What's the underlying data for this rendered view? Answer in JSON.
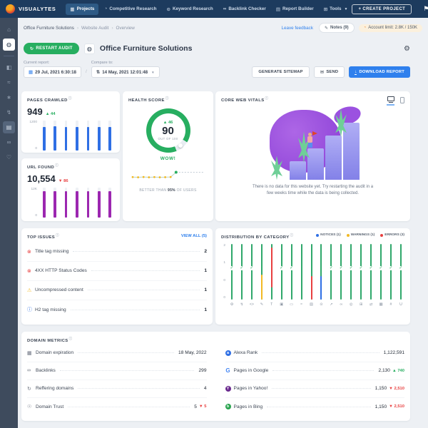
{
  "topnav": {
    "brand": "VISUALYTES",
    "items": [
      {
        "label": "Projects",
        "icon": "projects-icon",
        "glyph": "▦",
        "active": true
      },
      {
        "label": "Competitive Research",
        "icon": "competitive-research-icon",
        "glyph": "◔",
        "active": false
      },
      {
        "label": "Keyword Research",
        "icon": "keyword-research-icon",
        "glyph": "⊙",
        "active": false
      },
      {
        "label": "Backlink Checker",
        "icon": "backlink-checker-icon",
        "glyph": "∞",
        "active": false
      },
      {
        "label": "Report Builder",
        "icon": "report-builder-icon",
        "glyph": "▤",
        "active": false
      },
      {
        "label": "Tools",
        "icon": "tools-icon",
        "glyph": "⊞",
        "active": false,
        "caret": true
      }
    ],
    "create_project": "+ CREATE PROJECT",
    "avatar": "VL"
  },
  "sidebar": {
    "items": [
      {
        "name": "home-icon",
        "glyph": "⌂",
        "state": "normal"
      },
      {
        "name": "site-audit-icon",
        "glyph": "◍",
        "state": "active"
      },
      {
        "name": "divider",
        "glyph": "",
        "state": "divider"
      },
      {
        "name": "analytics-icon",
        "glyph": "◧",
        "state": "normal"
      },
      {
        "name": "pulse-icon",
        "glyph": "≈",
        "state": "normal"
      },
      {
        "name": "keywords-icon",
        "glyph": "∗",
        "state": "normal"
      },
      {
        "name": "lightning-icon",
        "glyph": "↯",
        "state": "normal"
      },
      {
        "name": "reports-icon",
        "glyph": "▤",
        "state": "highlight"
      },
      {
        "name": "backlinks-icon",
        "glyph": "∞",
        "state": "normal"
      },
      {
        "name": "thumbs-up-icon",
        "glyph": "♡",
        "state": "normal"
      }
    ]
  },
  "breadcrumb": {
    "items": [
      "Office Furniture Solutions",
      "Website Audit",
      "Overview"
    ]
  },
  "utility": {
    "leave_feedback": "Leave feedback",
    "notes": "Notes (9)",
    "account_limit": "Account limit: 2.8K / 150K"
  },
  "toolbar": {
    "restart": "RESTART AUDIT",
    "title": "Office Furniture Solutions"
  },
  "report_controls": {
    "current_label": "Current report:",
    "current_value": "29 Jul, 2021 6:30:18",
    "separator": "/",
    "compare_label": "Compare to:",
    "compare_value": "14 May, 2021 12:01:48",
    "generate_sitemap": "GENERATE SITEMAP",
    "send": "SEND",
    "download": "DOWNLOAD REPORT"
  },
  "cards": {
    "pages_crawled": {
      "title": "PAGES CRAWLED",
      "value": "949",
      "delta": "▲ 44",
      "delta_dir": "up"
    },
    "url_found": {
      "title": "URL FOUND",
      "value": "10,554",
      "delta": "▼ 86",
      "delta_dir": "down"
    },
    "health": {
      "title": "HEALTH SCORE",
      "delta": "▲ 46",
      "score": "90",
      "sub": "OUT OF 100",
      "badge": "WOW!",
      "caption_pre": "BETTER THAN ",
      "caption_strong": "95%",
      "caption_post": " OF USERS"
    },
    "cwv": {
      "title": "CORE WEB VITALS",
      "message_line1": "There is no data for this website yet. Try restarting the audit in a",
      "message_line2": "few weeks time while the data is being collected."
    },
    "top_issues": {
      "title": "TOP ISSUES",
      "view_all": "VIEW ALL (5)",
      "items": [
        {
          "severity": "error",
          "icon": "error-icon",
          "label": "Title tag missing",
          "count": "2"
        },
        {
          "severity": "error",
          "icon": "error-icon",
          "label": "4XX HTTP Status Codes",
          "count": "1"
        },
        {
          "severity": "warning",
          "icon": "warning-icon",
          "label": "Uncompressed content",
          "count": "1"
        },
        {
          "severity": "notice",
          "icon": "notice-icon",
          "label": "H2 tag missing",
          "count": "1"
        }
      ]
    },
    "distribution": {
      "title": "DISTRIBUTION BY CATEGORY",
      "legend": [
        {
          "label": "NOTICES (1)",
          "color": "#2f6fe4"
        },
        {
          "label": "WARNINGS (1)",
          "color": "#f2b924"
        },
        {
          "label": "ERRORS (3)",
          "color": "#e84040"
        }
      ]
    },
    "domain_metrics": {
      "title": "DOMAIN METRICS",
      "columns": [
        [
          {
            "icon": "calendar-icon",
            "glyph": "▦",
            "label": "Domain expiration",
            "value": "18 May, 2022"
          },
          {
            "icon": "backlinks-icon",
            "glyph": "∞",
            "label": "Backlinks",
            "value": "299"
          },
          {
            "icon": "referring-domains-icon",
            "glyph": "↻",
            "label": "Reffering domains",
            "value": "4"
          },
          {
            "icon": "domain-trust-icon",
            "glyph": "☉",
            "label": "Domain Trust",
            "value": "5",
            "delta": "▼ 5",
            "delta_dir": "down"
          }
        ],
        [
          {
            "icon": "alexa-icon",
            "brand": "a",
            "brand_bg": "#2f6fe4",
            "brand_color": "#ffffff",
            "label": "Alexa Rank",
            "value": "1,122,591"
          },
          {
            "icon": "google-icon",
            "brand": "G",
            "brand_bg": "#ffffff",
            "brand_color": "#4285F4",
            "label": "Pages in Google",
            "value": "2,130",
            "delta": "▲ 740",
            "delta_dir": "up"
          },
          {
            "icon": "yahoo-icon",
            "brand": "Y",
            "brand_bg": "#6b2b8f",
            "brand_color": "#ffffff",
            "label": "Pages in Yahoo!",
            "value": "1,150",
            "delta": "▼ 2,510",
            "delta_dir": "down"
          },
          {
            "icon": "bing-icon",
            "brand": "b",
            "brand_bg": "#2aa44f",
            "brand_color": "#ffffff",
            "label": "Pages in Bing",
            "value": "1,150",
            "delta": "▼ 2,510",
            "delta_dir": "down"
          }
        ]
      ]
    }
  },
  "chart_data": [
    {
      "id": "pages_crawled_trend",
      "type": "bar",
      "title": "PAGES CRAWLED",
      "values": [
        940,
        965,
        945,
        950,
        935,
        930,
        949
      ],
      "ylim": [
        0,
        1200
      ],
      "yticks": [
        "1200",
        "0"
      ],
      "bar_color": "#2f6fe4"
    },
    {
      "id": "url_found_trend",
      "type": "bar",
      "title": "URL FOUND",
      "values": [
        10400,
        10650,
        10500,
        10380,
        10550,
        10450,
        10554
      ],
      "ylim": [
        0,
        12000
      ],
      "yticks": [
        "12K",
        "0"
      ],
      "bar_color": "#9c27b0"
    },
    {
      "id": "health_score_gauge",
      "type": "gauge",
      "value": 90,
      "max": 100,
      "delta": 46,
      "label": "WOW!"
    },
    {
      "id": "health_score_trend",
      "type": "line",
      "values": [
        45,
        43,
        46,
        43,
        45,
        43,
        44,
        46,
        90
      ],
      "ylim": [
        0,
        100
      ],
      "dot_color": "#f2b924",
      "last_dot_color": "#27ae60",
      "projection": "dashed",
      "caption": "BETTER THAN 95% OF USERS"
    },
    {
      "id": "issue_distribution",
      "type": "lollipop",
      "title": "DISTRIBUTION BY CATEGORY",
      "ylim": [
        0,
        2
      ],
      "yticks": [
        "2",
        "1",
        "0",
        "0"
      ],
      "legend": [
        "NOTICES (1)",
        "WARNINGS (1)",
        "ERRORS (3)"
      ],
      "columns": [
        {
          "icon": "gear-icon",
          "glyph": "⚙",
          "status": "ok",
          "value": 0
        },
        {
          "icon": "lightning-icon",
          "glyph": "↯",
          "status": "ok",
          "value": 0
        },
        {
          "icon": "code-icon",
          "glyph": "<>",
          "status": "ok",
          "value": 0
        },
        {
          "icon": "pencil-icon",
          "glyph": "✎",
          "status": "warning",
          "value": 1
        },
        {
          "icon": "title-icon",
          "glyph": "T",
          "status": "error2",
          "value": 2
        },
        {
          "icon": "image-icon",
          "glyph": "▣",
          "status": "ok",
          "value": 0
        },
        {
          "icon": "doc-icon",
          "glyph": "▭",
          "status": "ok",
          "value": 0
        },
        {
          "icon": "pulse-icon",
          "glyph": "≈",
          "status": "plain",
          "value": 0
        },
        {
          "icon": "page-icon",
          "glyph": "▤",
          "status": "error",
          "value": 1
        },
        {
          "icon": "search-icon",
          "glyph": "⊙",
          "status": "notice",
          "value": 1
        },
        {
          "icon": "external-icon",
          "glyph": "↗",
          "status": "ok",
          "value": 0
        },
        {
          "icon": "link-icon",
          "glyph": "∞",
          "status": "ok",
          "value": 0
        },
        {
          "icon": "target-icon",
          "glyph": "◎",
          "status": "ok",
          "value": 0
        },
        {
          "icon": "grid-icon",
          "glyph": "⊞",
          "status": "ok",
          "value": 0
        },
        {
          "icon": "swap-icon",
          "glyph": "⇄",
          "status": "ok",
          "value": 0
        },
        {
          "icon": "calendar-icon",
          "glyph": "▦",
          "status": "ok",
          "value": 0
        },
        {
          "icon": "hash-icon",
          "glyph": "#",
          "status": "ok",
          "value": 0
        },
        {
          "icon": "usability-icon",
          "glyph": "U",
          "status": "ok",
          "value": 0
        }
      ]
    }
  ]
}
